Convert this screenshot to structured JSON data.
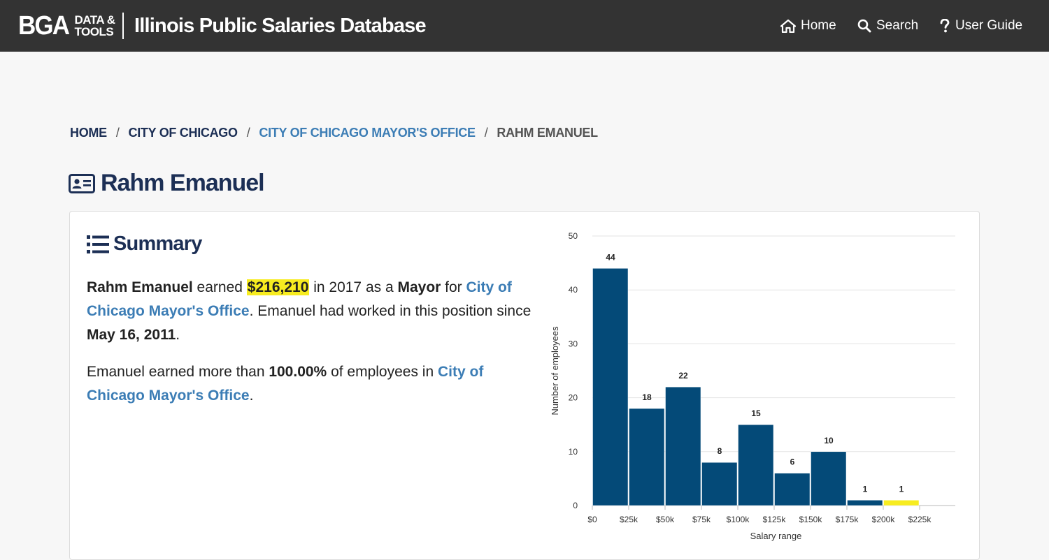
{
  "header": {
    "logo_main": "BGA",
    "logo_line1": "DATA &",
    "logo_line2": "TOOLS",
    "site_title": "Illinois Public Salaries Database",
    "nav": [
      {
        "label": "Home",
        "icon": "home-icon"
      },
      {
        "label": "Search",
        "icon": "search-icon"
      },
      {
        "label": "User Guide",
        "icon": "question-icon"
      }
    ]
  },
  "breadcrumb": {
    "items": [
      "HOME",
      "CITY OF CHICAGO",
      "CITY OF CHICAGO MAYOR'S OFFICE",
      "RAHM EMANUEL"
    ],
    "separator": "/"
  },
  "person": {
    "name": "Rahm Emanuel",
    "icon": "id-card-icon"
  },
  "summary": {
    "heading": "Summary",
    "icon": "list-icon",
    "p1": {
      "name": "Rahm Emanuel",
      "t1": " earned ",
      "salary": "$216,210",
      "t2": " in 2017 as a ",
      "title": "Mayor",
      "t3": " for ",
      "employer": "City of Chicago Mayor's Office",
      "t4": ". Emanuel had worked in this position since ",
      "start_date": "May 16, 2011",
      "t5": "."
    },
    "p2": {
      "t1": "Emanuel earned more than ",
      "percent": "100.00%",
      "t2": " of employees in ",
      "employer": "City of Chicago Mayor's Office",
      "t3": "."
    }
  },
  "colors": {
    "header_bg": "#333333",
    "navy": "#1c2f55",
    "link_blue": "#3c7db5",
    "bar": "#044a78",
    "highlight": "#f7ec20"
  },
  "chart_data": {
    "type": "bar",
    "categories": [
      "$0",
      "$25k",
      "$50k",
      "$75k",
      "$100k",
      "$125k",
      "$150k",
      "$175k",
      "$200k"
    ],
    "x_tick_labels": [
      "$0",
      "$25k",
      "$50k",
      "$75k",
      "$100k",
      "$125k",
      "$150k",
      "$175k",
      "$200k",
      "$225k"
    ],
    "values": [
      44,
      18,
      22,
      8,
      15,
      6,
      10,
      1,
      1
    ],
    "highlight_index": 8,
    "xlabel": "Salary range",
    "ylabel": "Number of employees",
    "ylim": [
      0,
      50
    ],
    "yticks": [
      0,
      10,
      20,
      30,
      40,
      50
    ],
    "grid": true
  }
}
